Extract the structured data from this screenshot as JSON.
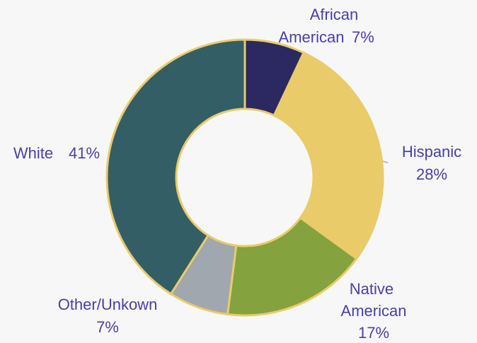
{
  "chart_data": {
    "type": "donut",
    "categories": [
      "African American",
      "Hispanic",
      "Native American",
      "Other/Unkown",
      "White"
    ],
    "values": [
      7,
      28,
      17,
      7,
      41
    ],
    "value_labels": [
      "7%",
      "28%",
      "17%",
      "7%",
      "41%"
    ],
    "colors": [
      "#2b2862",
      "#e9cb6a",
      "#84a23e",
      "#a0a7ae",
      "#345e66"
    ]
  }
}
